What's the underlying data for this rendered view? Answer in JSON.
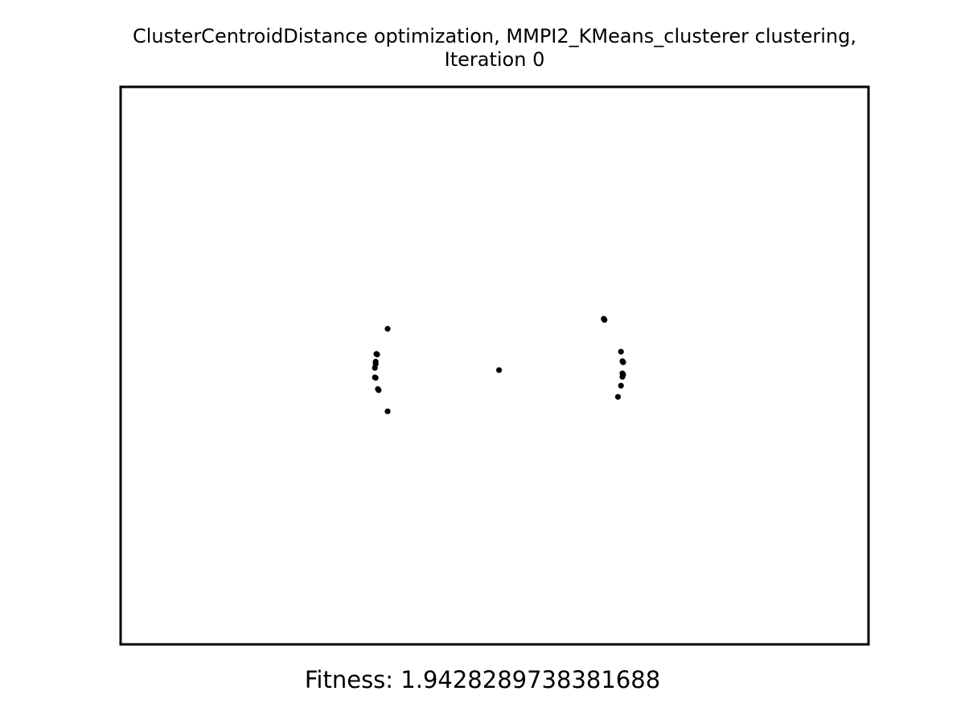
{
  "chart_data": {
    "type": "scatter",
    "title": "ClusterCentroidDistance optimization, MMPI2_KMeans_clusterer clustering,",
    "subtitle": "Iteration 0",
    "xlabel": "",
    "ylabel": "",
    "xlim": [
      0,
      1
    ],
    "ylim": [
      0,
      1
    ],
    "axes_ticks": false,
    "grid": false,
    "point_color": "#000000",
    "series": [
      {
        "points": [
          {
            "x": 0.357,
            "y": 0.566
          },
          {
            "x": 0.342,
            "y": 0.521
          },
          {
            "x": 0.343,
            "y": 0.52
          },
          {
            "x": 0.341,
            "y": 0.507
          },
          {
            "x": 0.341,
            "y": 0.503
          },
          {
            "x": 0.34,
            "y": 0.496
          },
          {
            "x": 0.34,
            "y": 0.479
          },
          {
            "x": 0.341,
            "y": 0.478
          },
          {
            "x": 0.344,
            "y": 0.458
          },
          {
            "x": 0.345,
            "y": 0.456
          },
          {
            "x": 0.357,
            "y": 0.418
          },
          {
            "x": 0.506,
            "y": 0.492
          },
          {
            "x": 0.646,
            "y": 0.584
          },
          {
            "x": 0.647,
            "y": 0.582
          },
          {
            "x": 0.669,
            "y": 0.525
          },
          {
            "x": 0.671,
            "y": 0.508
          },
          {
            "x": 0.672,
            "y": 0.506
          },
          {
            "x": 0.671,
            "y": 0.486
          },
          {
            "x": 0.672,
            "y": 0.484
          },
          {
            "x": 0.671,
            "y": 0.48
          },
          {
            "x": 0.669,
            "y": 0.464
          },
          {
            "x": 0.665,
            "y": 0.444
          }
        ]
      }
    ],
    "annotation": "Fitness: 1.9428289738381688"
  }
}
